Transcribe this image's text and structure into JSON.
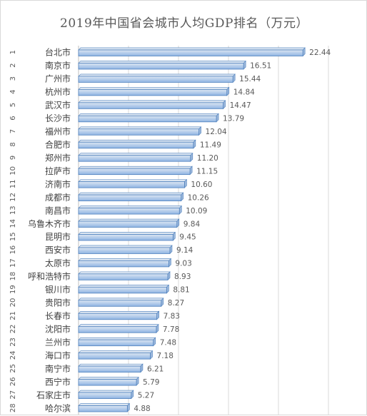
{
  "chart_data": {
    "type": "bar",
    "orientation": "horizontal",
    "title": "2019年中国省会城市人均GDP排名（万元）",
    "xlabel": "",
    "ylabel": "",
    "xlim": [
      0,
      25
    ],
    "grid": true,
    "legend": "none",
    "ranks": [
      "1",
      "2",
      "3",
      "4",
      "5",
      "6",
      "7",
      "8",
      "9",
      "10",
      "11",
      "12",
      "13",
      "14",
      "15",
      "16",
      "17",
      "18",
      "19",
      "20",
      "21",
      "22",
      "23",
      "24",
      "25",
      "26",
      "27",
      "28"
    ],
    "categories": [
      "台北市",
      "南京市",
      "广州市",
      "杭州市",
      "武汉市",
      "长沙市",
      "福州市",
      "合肥市",
      "郑州市",
      "拉萨市",
      "济南市",
      "成都市",
      "南昌市",
      "乌鲁木齐市",
      "昆明市",
      "西安市",
      "太原市",
      "呼和浩特市",
      "银川市",
      "贵阳市",
      "长春市",
      "沈阳市",
      "兰州市",
      "海口市",
      "南宁市",
      "西宁市",
      "石家庄市",
      "哈尔滨"
    ],
    "values": [
      22.44,
      16.51,
      15.44,
      14.84,
      14.47,
      13.79,
      12.04,
      11.49,
      11.2,
      11.15,
      10.6,
      10.26,
      10.09,
      9.84,
      9.45,
      9.14,
      9.03,
      8.93,
      8.81,
      8.27,
      7.83,
      7.78,
      7.48,
      7.18,
      6.21,
      5.79,
      5.27,
      4.88
    ],
    "value_labels": [
      "22.44",
      "16.51",
      "15.44",
      "14.84",
      "14.47",
      "13.79",
      "12.04",
      "11.49",
      "11.20",
      "11.15",
      "10.60",
      "10.26",
      "10.09",
      "9.84",
      "9.45",
      "9.14",
      "9.03",
      "8.93",
      "8.81",
      "8.27",
      "7.83",
      "7.78",
      "7.48",
      "7.18",
      "6.21",
      "5.79",
      "5.27",
      "4.88"
    ]
  },
  "colors": {
    "bar_fill_top": "#dce6f2",
    "bar_fill_bottom": "#8fb4e3",
    "bar_stroke": "#4f81bd",
    "bar_side": "#9cb8dc",
    "gridline": "#d9d9d9",
    "axis": "#bfbfbf"
  }
}
